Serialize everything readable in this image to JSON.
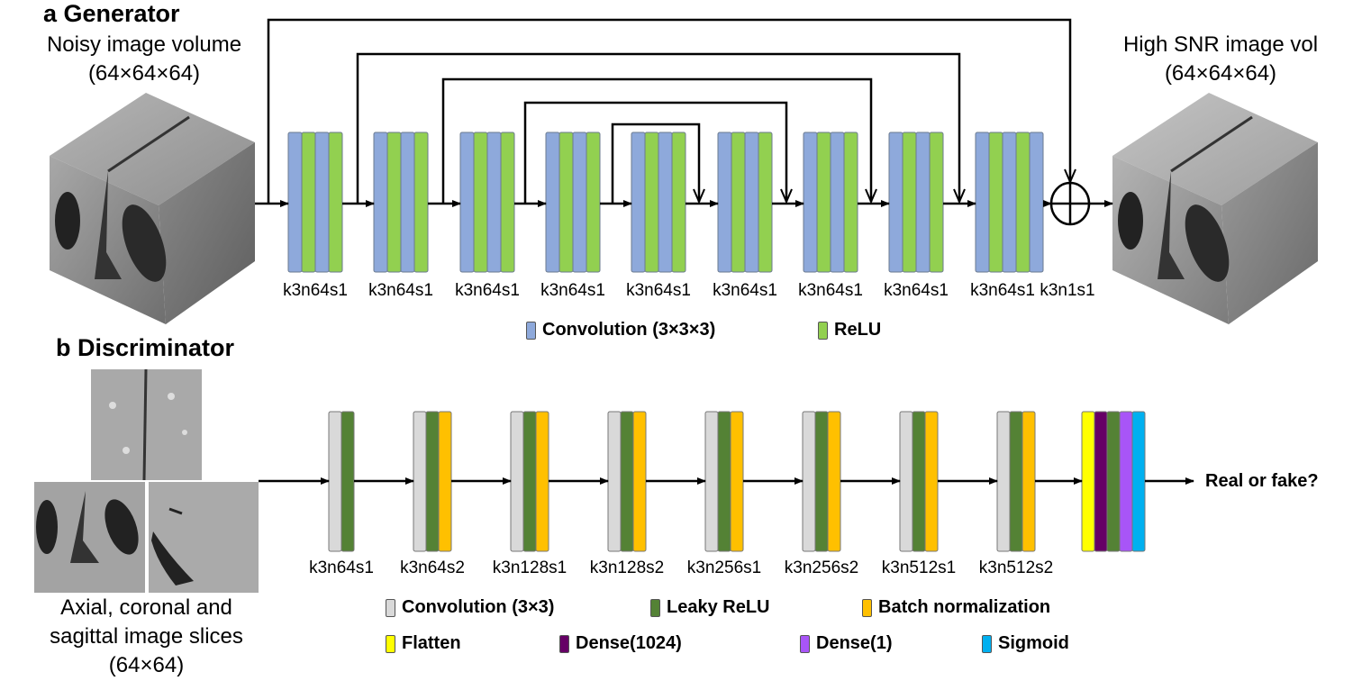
{
  "generator": {
    "title": "a Generator",
    "input_caption": [
      "Noisy image volume",
      "(64×64×64)"
    ],
    "output_caption": [
      "High SNR image vol",
      "(64×64×64)"
    ],
    "blocks": [
      {
        "label": "k3n64s1",
        "layers": [
          "conv",
          "relu",
          "conv",
          "relu"
        ]
      },
      {
        "label": "k3n64s1",
        "layers": [
          "conv",
          "relu",
          "conv",
          "relu"
        ]
      },
      {
        "label": "k3n64s1",
        "layers": [
          "conv",
          "relu",
          "conv",
          "relu"
        ]
      },
      {
        "label": "k3n64s1",
        "layers": [
          "conv",
          "relu",
          "conv",
          "relu"
        ]
      },
      {
        "label": "k3n64s1",
        "layers": [
          "conv",
          "relu",
          "conv",
          "relu"
        ]
      },
      {
        "label": "k3n64s1",
        "layers": [
          "conv",
          "relu",
          "conv",
          "relu"
        ]
      },
      {
        "label": "k3n64s1",
        "layers": [
          "conv",
          "relu",
          "conv",
          "relu"
        ]
      },
      {
        "label": "k3n64s1",
        "layers": [
          "conv",
          "relu",
          "conv",
          "relu"
        ]
      },
      {
        "label": "k3n64s1",
        "layers": [
          "conv",
          "relu",
          "conv",
          "relu",
          "conv"
        ]
      }
    ],
    "final_label": "k3n1s1",
    "skip_connections": [
      {
        "from_after_block": 0,
        "to_after_block": 9
      },
      {
        "from_after_block": 1,
        "to_after_block": 8
      },
      {
        "from_after_block": 2,
        "to_after_block": 7
      },
      {
        "from_after_block": 3,
        "to_after_block": 6
      },
      {
        "from_after_block": 4,
        "to_after_block": 5
      }
    ],
    "sum_symbol": "⊕",
    "legend": [
      {
        "key": "conv",
        "label": "Convolution (3×3×3)",
        "color": "#8EA9DB"
      },
      {
        "key": "relu",
        "label": "ReLU",
        "color": "#92D050"
      }
    ]
  },
  "discriminator": {
    "title": "b Discriminator",
    "input_caption": [
      "Axial, coronal and",
      "sagittal image slices",
      "(64×64)"
    ],
    "blocks": [
      {
        "label": "k3n64s1",
        "layers": [
          "conv",
          "lrelu"
        ]
      },
      {
        "label": "k3n64s2",
        "layers": [
          "conv",
          "lrelu",
          "bn"
        ]
      },
      {
        "label": "k3n128s1",
        "layers": [
          "conv",
          "lrelu",
          "bn"
        ]
      },
      {
        "label": "k3n128s2",
        "layers": [
          "conv",
          "lrelu",
          "bn"
        ]
      },
      {
        "label": "k3n256s1",
        "layers": [
          "conv",
          "lrelu",
          "bn"
        ]
      },
      {
        "label": "k3n256s2",
        "layers": [
          "conv",
          "lrelu",
          "bn"
        ]
      },
      {
        "label": "k3n512s1",
        "layers": [
          "conv",
          "lrelu",
          "bn"
        ]
      },
      {
        "label": "k3n512s2",
        "layers": [
          "conv",
          "lrelu",
          "bn"
        ]
      },
      {
        "label": "",
        "layers": [
          "flatten",
          "dense1024",
          "lrelu",
          "dense1",
          "sigmoid"
        ]
      }
    ],
    "output_label": "Real or fake?",
    "legend_row1": [
      {
        "key": "conv",
        "label": "Convolution (3×3)",
        "color": "#D9D9D9"
      },
      {
        "key": "lrelu",
        "label": "Leaky ReLU",
        "color": "#548235"
      },
      {
        "key": "bn",
        "label": "Batch normalization",
        "color": "#FFC000"
      }
    ],
    "legend_row2": [
      {
        "key": "flatten",
        "label": "Flatten",
        "color": "#FFFF00"
      },
      {
        "key": "dense1024",
        "label": "Dense(1024)",
        "color": "#660066"
      },
      {
        "key": "dense1",
        "label": "Dense(1)",
        "color": "#A855F7"
      },
      {
        "key": "sigmoid",
        "label": "Sigmoid",
        "color": "#00B0F0"
      }
    ]
  }
}
